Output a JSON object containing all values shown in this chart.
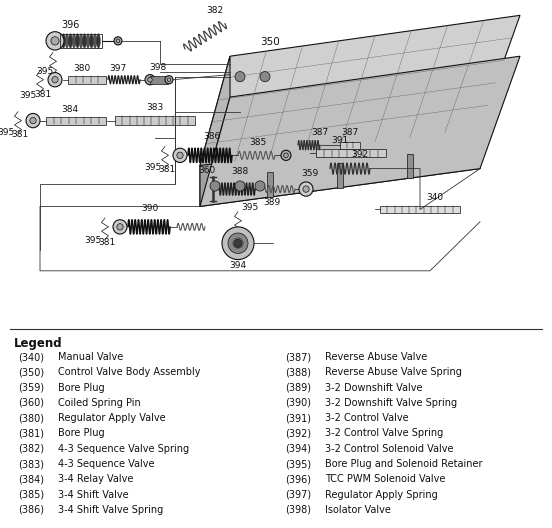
{
  "background_color": "#ffffff",
  "legend_title": "Legend",
  "legend_col1": [
    [
      "(340)",
      "Manual Valve"
    ],
    [
      "(350)",
      "Control Valve Body Assembly"
    ],
    [
      "(359)",
      "Bore Plug"
    ],
    [
      "(360)",
      "Coiled Spring Pin"
    ],
    [
      "(380)",
      "Regulator Apply Valve"
    ],
    [
      "(381)",
      "Bore Plug"
    ],
    [
      "(382)",
      "4-3 Sequence Valve Spring"
    ],
    [
      "(383)",
      "4-3 Sequence Valve"
    ],
    [
      "(384)",
      "3-4 Relay Valve"
    ],
    [
      "(385)",
      "3-4 Shift Valve"
    ],
    [
      "(386)",
      "3-4 Shift Valve Spring"
    ]
  ],
  "legend_col2": [
    [
      "(387)",
      "Reverse Abuse Valve"
    ],
    [
      "(388)",
      "Reverse Abuse Valve Spring"
    ],
    [
      "(389)",
      "3-2 Downshift Valve"
    ],
    [
      "(390)",
      "3-2 Downshift Valve Spring"
    ],
    [
      "(391)",
      "3-2 Control Valve"
    ],
    [
      "(392)",
      "3-2 Control Valve Spring"
    ],
    [
      "(394)",
      "3-2 Control Solenoid Valve"
    ],
    [
      "(395)",
      "Bore Plug and Solenoid Retainer"
    ],
    [
      "(396)",
      "TCC PWM Solenoid Valve"
    ],
    [
      "(397)",
      "Regulator Apply Spring"
    ],
    [
      "(398)",
      "Isolator Valve"
    ]
  ],
  "figsize": [
    5.52,
    5.28
  ],
  "dpi": 100
}
